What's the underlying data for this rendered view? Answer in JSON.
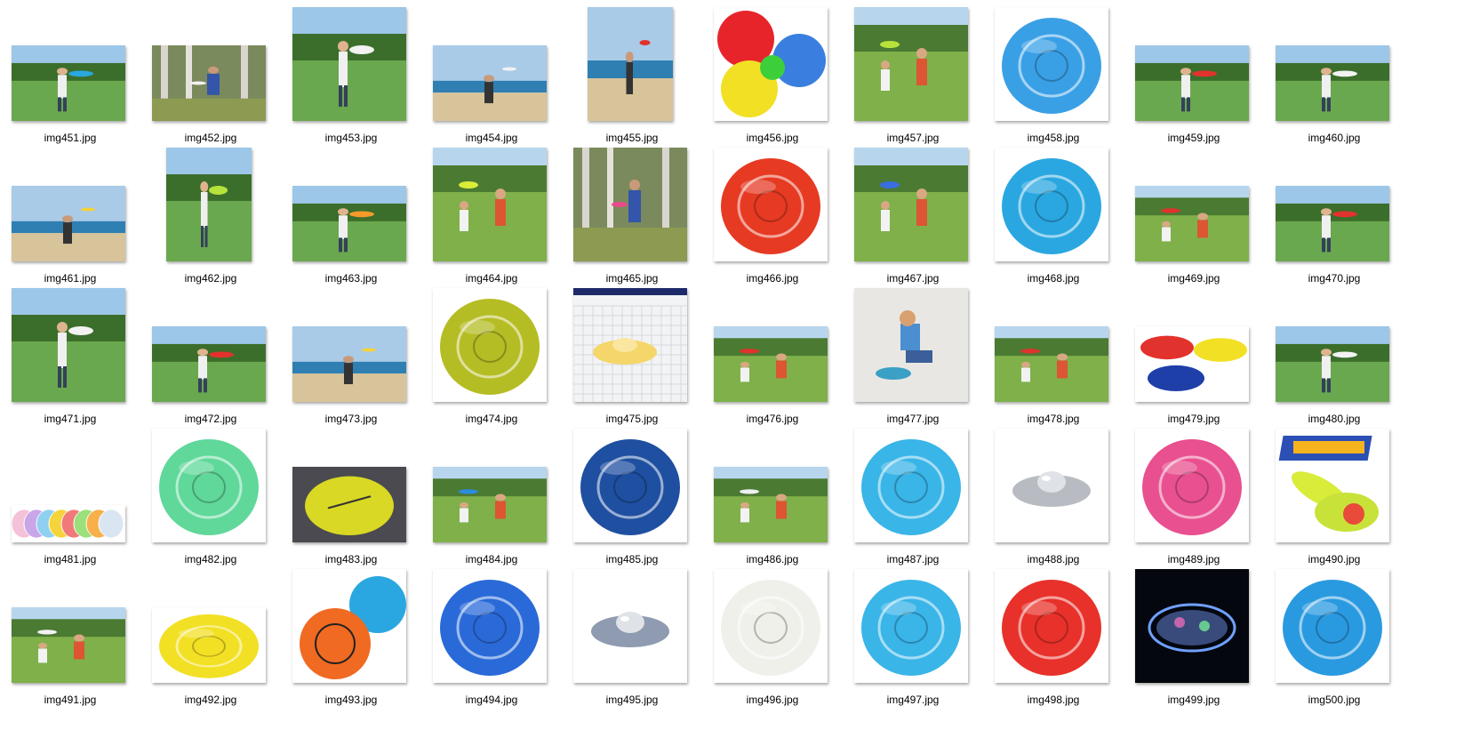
{
  "files": [
    {
      "name": "img451.jpg",
      "icon": "person-holding-blue-frisbee-photo",
      "aspect": "landscape",
      "scene": "park",
      "disc": "#2aa7e0"
    },
    {
      "name": "img452.jpg",
      "icon": "person-in-woods-frisbee-photo",
      "aspect": "landscape",
      "scene": "woods",
      "disc": "#f2f2f2"
    },
    {
      "name": "img453.jpg",
      "icon": "girl-throwing-frisbee-photo",
      "aspect": "square",
      "scene": "park",
      "disc": "#f2f2f2"
    },
    {
      "name": "img454.jpg",
      "icon": "beach-frisbee-photo",
      "aspect": "landscape",
      "scene": "beach",
      "disc": "#f2f2f2"
    },
    {
      "name": "img455.jpg",
      "icon": "boy-catching-frisbee-beach-photo",
      "aspect": "portrait",
      "scene": "beach",
      "disc": "#e2322d"
    },
    {
      "name": "img456.jpg",
      "icon": "colorful-discs-product-photo",
      "aspect": "square",
      "scene": "multi",
      "disc": "#e8242b"
    },
    {
      "name": "img457.jpg",
      "icon": "man-throwing-frisbee-field-photo",
      "aspect": "square",
      "scene": "field",
      "disc": "#b7e23b"
    },
    {
      "name": "img458.jpg",
      "icon": "blue-printed-disc-product-photo",
      "aspect": "square",
      "scene": "disc",
      "disc": "#3aa0e6"
    },
    {
      "name": "img459.jpg",
      "icon": "girl-red-frisbee-photo",
      "aspect": "landscape",
      "scene": "park",
      "disc": "#e2322d"
    },
    {
      "name": "img460.jpg",
      "icon": "woman-throwing-frisbee-photo",
      "aspect": "landscape",
      "scene": "park",
      "disc": "#f2f2f2"
    },
    {
      "name": "img461.jpg",
      "icon": "beach-throw-photo",
      "aspect": "landscape",
      "scene": "beach",
      "disc": "#f5d33a"
    },
    {
      "name": "img462.jpg",
      "icon": "boy-holding-green-frisbee-photo",
      "aspect": "portrait",
      "scene": "park",
      "disc": "#b7e23b"
    },
    {
      "name": "img463.jpg",
      "icon": "man-orange-frisbee-photo",
      "aspect": "landscape",
      "scene": "park",
      "disc": "#f39a2b"
    },
    {
      "name": "img464.jpg",
      "icon": "kids-playing-frisbee-ad-photo",
      "aspect": "square",
      "scene": "field",
      "disc": "#d8ec3a"
    },
    {
      "name": "img465.jpg",
      "icon": "man-throwing-in-forest-photo",
      "aspect": "square",
      "scene": "woods",
      "disc": "#e84b8a"
    },
    {
      "name": "img466.jpg",
      "icon": "red-disc-product-photo",
      "aspect": "square",
      "scene": "disc",
      "disc": "#e63a23"
    },
    {
      "name": "img467.jpg",
      "icon": "free-flight-ad-photo",
      "aspect": "square",
      "scene": "field",
      "disc": "#3a6de0"
    },
    {
      "name": "img468.jpg",
      "icon": "blue-disc-product-photo",
      "aspect": "square",
      "scene": "disc",
      "disc": "#2aa7e0"
    },
    {
      "name": "img469.jpg",
      "icon": "kids-in-meadow-photo",
      "aspect": "landscape",
      "scene": "field",
      "disc": "#e2322d"
    },
    {
      "name": "img470.jpg",
      "icon": "girl-red-frisbee-field-photo",
      "aspect": "landscape",
      "scene": "park",
      "disc": "#e2322d"
    },
    {
      "name": "img471.jpg",
      "icon": "man-throwing-white-frisbee-photo",
      "aspect": "square",
      "scene": "park",
      "disc": "#f2f2f2"
    },
    {
      "name": "img472.jpg",
      "icon": "man-in-beanie-throwing-photo",
      "aspect": "landscape",
      "scene": "park",
      "disc": "#e2322d"
    },
    {
      "name": "img473.jpg",
      "icon": "beach-catch-yellow-frisbee-photo",
      "aspect": "landscape",
      "scene": "beach",
      "disc": "#f5d33a"
    },
    {
      "name": "img474.jpg",
      "icon": "westside-discs-product-photo",
      "aspect": "square",
      "scene": "disc",
      "disc": "#b5bd24"
    },
    {
      "name": "img475.jpg",
      "icon": "3d-model-frisbee-screenshot",
      "aspect": "square",
      "scene": "cad",
      "disc": "#f5d66a"
    },
    {
      "name": "img476.jpg",
      "icon": "dog-catching-frisbee-photo",
      "aspect": "landscape",
      "scene": "field",
      "disc": "#e2322d"
    },
    {
      "name": "img477.jpg",
      "icon": "child-with-frisbee-photo",
      "aspect": "square",
      "scene": "snow",
      "disc": "#3aa0c6"
    },
    {
      "name": "img478.jpg",
      "icon": "dog-leaping-frisbee-photo",
      "aspect": "landscape",
      "scene": "field",
      "disc": "#e2322d"
    },
    {
      "name": "img479.jpg",
      "icon": "three-frisbees-product-photo",
      "aspect": "landscape",
      "scene": "three",
      "disc": "#e2322d"
    },
    {
      "name": "img480.jpg",
      "icon": "woman-throwing-airfield-photo",
      "aspect": "landscape",
      "scene": "park",
      "disc": "#f2f2f2"
    },
    {
      "name": "img481.jpg",
      "icon": "disc-set-row-product-photo",
      "aspect": "wide",
      "scene": "row",
      "disc": "#f5d33a"
    },
    {
      "name": "img482.jpg",
      "icon": "green-disc-product-photo",
      "aspect": "square",
      "scene": "disc",
      "disc": "#5fd89a"
    },
    {
      "name": "img483.jpg",
      "icon": "yellow-disc-dark-bg-photo",
      "aspect": "landscape",
      "scene": "darkdisc",
      "disc": "#d9d824"
    },
    {
      "name": "img484.jpg",
      "icon": "dog-blue-frisbee-photo",
      "aspect": "landscape",
      "scene": "field",
      "disc": "#2a8ce0"
    },
    {
      "name": "img485.jpg",
      "icon": "buzzz-disc-product-photo",
      "aspect": "square",
      "scene": "disc",
      "disc": "#1f4fa0"
    },
    {
      "name": "img486.jpg",
      "icon": "hand-with-white-disc-photo",
      "aspect": "landscape",
      "scene": "field",
      "disc": "#eef0f2"
    },
    {
      "name": "img487.jpg",
      "icon": "light-blue-frisbee-product-photo",
      "aspect": "square",
      "scene": "disc",
      "disc": "#3ab5e8"
    },
    {
      "name": "img488.jpg",
      "icon": "metal-disc-product-photo",
      "aspect": "square",
      "scene": "metal",
      "disc": "#b8bcc2"
    },
    {
      "name": "img489.jpg",
      "icon": "pink-disc-product-photo",
      "aspect": "square",
      "scene": "disc",
      "disc": "#e9508f"
    },
    {
      "name": "img490.jpg",
      "icon": "super-sore-slinger-product-photo",
      "aspect": "square",
      "scene": "slinger",
      "disc": "#d8ec3a"
    },
    {
      "name": "img491.jpg",
      "icon": "kids-on-hill-frisbee-photo",
      "aspect": "landscape",
      "scene": "field",
      "disc": "#f2f2f2"
    },
    {
      "name": "img492.jpg",
      "icon": "yellow-printed-disc-product-photo",
      "aspect": "landscape",
      "scene": "disc",
      "disc": "#f2e024"
    },
    {
      "name": "img493.jpg",
      "icon": "orange-and-blue-discs-product-photo",
      "aspect": "square",
      "scene": "two",
      "disc": "#f06a22"
    },
    {
      "name": "img494.jpg",
      "icon": "royal-blue-frisbee-product-photo",
      "aspect": "square",
      "scene": "disc",
      "disc": "#2a6ad8"
    },
    {
      "name": "img495.jpg",
      "icon": "ufo-shaped-disc-product-photo",
      "aspect": "square",
      "scene": "metal",
      "disc": "#8e9bb0"
    },
    {
      "name": "img496.jpg",
      "icon": "star-printed-disc-product-photo",
      "aspect": "square",
      "scene": "disc",
      "disc": "#f0f0ea"
    },
    {
      "name": "img497.jpg",
      "icon": "sunburst-blue-frisbee-product-photo",
      "aspect": "square",
      "scene": "disc",
      "disc": "#3ab5e8"
    },
    {
      "name": "img498.jpg",
      "icon": "red-pattern-frisbee-product-photo",
      "aspect": "square",
      "scene": "disc",
      "disc": "#e8312a"
    },
    {
      "name": "img499.jpg",
      "icon": "light-up-disc-night-photo",
      "aspect": "square",
      "scene": "night",
      "disc": "#9fc0ff"
    },
    {
      "name": "img500.jpg",
      "icon": "dotted-blue-disc-product-photo",
      "aspect": "square",
      "scene": "disc",
      "disc": "#2a9ae0"
    }
  ]
}
